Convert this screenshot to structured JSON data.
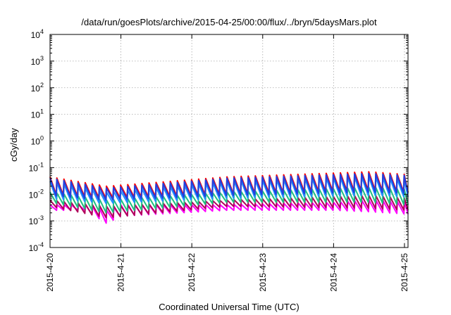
{
  "chart_data": {
    "type": "line",
    "title": "/data/run/goesPlots/archive/2015-04-25/00:00/flux/../bryn/5daysMars.plot",
    "xlabel": "Coordinated Universal Time (UTC)",
    "ylabel": "cGy/day",
    "yscale": "log",
    "ylim": [
      0.0001,
      10000
    ],
    "xlim": [
      "2015-04-20",
      "2015-04-25 01:12"
    ],
    "grid": true,
    "legend": "none",
    "x_ticks": [
      "2015-4-20",
      "2015-4-21",
      "2015-4-22",
      "2015-4-23",
      "2015-4-24",
      "2015-4-25"
    ],
    "y_ticks": [
      {
        "base": "10",
        "exp": "-4"
      },
      {
        "base": "10",
        "exp": "-3"
      },
      {
        "base": "10",
        "exp": "-2"
      },
      {
        "base": "10",
        "exp": "-1"
      },
      {
        "base": "10",
        "exp": "0"
      },
      {
        "base": "10",
        "exp": "1"
      },
      {
        "base": "10",
        "exp": "2"
      },
      {
        "base": "10",
        "exp": "3"
      },
      {
        "base": "10",
        "exp": "4"
      }
    ],
    "cycle_hours": 2.4,
    "series_colors": [
      "#ff00ff",
      "#b0005a",
      "#20c080",
      "#1e90ff",
      "#ff0000",
      "#2040e0"
    ],
    "series": [
      {
        "color": "#ff00ff",
        "values": [
          {
            "x": "2015-04-20 00:00",
            "peak": 0.004,
            "trough": 0.0025
          },
          {
            "x": "2015-04-20 12:00",
            "peak": 0.004,
            "trough": 0.0025
          },
          {
            "x": "2015-04-20 19:12",
            "peak": 0.0025,
            "trough": 0.0008
          },
          {
            "x": "2015-04-21 00:00",
            "peak": 0.004,
            "trough": 0.0015
          },
          {
            "x": "2015-04-22 12:00",
            "peak": 0.004,
            "trough": 0.0025
          },
          {
            "x": "2015-04-24 00:00",
            "peak": 0.005,
            "trough": 0.0025
          },
          {
            "x": "2015-04-24 12:00",
            "peak": 0.006,
            "trough": 0.0022
          },
          {
            "x": "2015-04-25 01:12",
            "peak": 0.005,
            "trough": 0.0018
          }
        ]
      },
      {
        "color": "#b0005a",
        "values": [
          {
            "x": "2015-04-20 00:00",
            "peak": 0.006,
            "trough": 0.0035
          },
          {
            "x": "2015-04-20 19:12",
            "peak": 0.0035,
            "trough": 0.0013
          },
          {
            "x": "2015-04-22 12:00",
            "peak": 0.006,
            "trough": 0.0035
          },
          {
            "x": "2015-04-24 12:00",
            "peak": 0.009,
            "trough": 0.003
          },
          {
            "x": "2015-04-25 01:12",
            "peak": 0.007,
            "trough": 0.0025
          }
        ]
      },
      {
        "color": "#20c080",
        "values": [
          {
            "x": "2015-04-20 00:00",
            "peak": 0.012,
            "trough": 0.005
          },
          {
            "x": "2015-04-20 19:12",
            "peak": 0.006,
            "trough": 0.002
          },
          {
            "x": "2015-04-22 12:00",
            "peak": 0.012,
            "trough": 0.005
          },
          {
            "x": "2015-04-24 12:00",
            "peak": 0.018,
            "trough": 0.005
          },
          {
            "x": "2015-04-25 01:12",
            "peak": 0.015,
            "trough": 0.004
          }
        ]
      },
      {
        "color": "#1e90ff",
        "values": [
          {
            "x": "2015-04-20 00:00",
            "peak": 0.03,
            "trough": 0.007
          },
          {
            "x": "2015-04-20 19:12",
            "peak": 0.012,
            "trough": 0.0045
          },
          {
            "x": "2015-04-22 12:00",
            "peak": 0.03,
            "trough": 0.007
          },
          {
            "x": "2015-04-24 12:00",
            "peak": 0.045,
            "trough": 0.009
          },
          {
            "x": "2015-04-25 01:12",
            "peak": 0.035,
            "trough": 0.008
          }
        ]
      },
      {
        "color": "#ff0000",
        "values": [
          {
            "x": "2015-04-20 00:00",
            "peak": 0.045,
            "trough": 0.01
          },
          {
            "x": "2015-04-20 19:12",
            "peak": 0.02,
            "trough": 0.007
          },
          {
            "x": "2015-04-22 12:00",
            "peak": 0.045,
            "trough": 0.01
          },
          {
            "x": "2015-04-24 12:00",
            "peak": 0.07,
            "trough": 0.014
          },
          {
            "x": "2015-04-25 01:12",
            "peak": 0.055,
            "trough": 0.012
          }
        ]
      },
      {
        "color": "#2040e0",
        "values": [
          {
            "x": "2015-04-20 00:00",
            "peak": 0.04,
            "trough": 0.009
          },
          {
            "x": "2015-04-20 19:12",
            "peak": 0.017,
            "trough": 0.006
          },
          {
            "x": "2015-04-22 12:00",
            "peak": 0.04,
            "trough": 0.009
          },
          {
            "x": "2015-04-24 12:00",
            "peak": 0.06,
            "trough": 0.012
          },
          {
            "x": "2015-04-25 01:12",
            "peak": 0.05,
            "trough": 0.011
          }
        ]
      }
    ]
  }
}
